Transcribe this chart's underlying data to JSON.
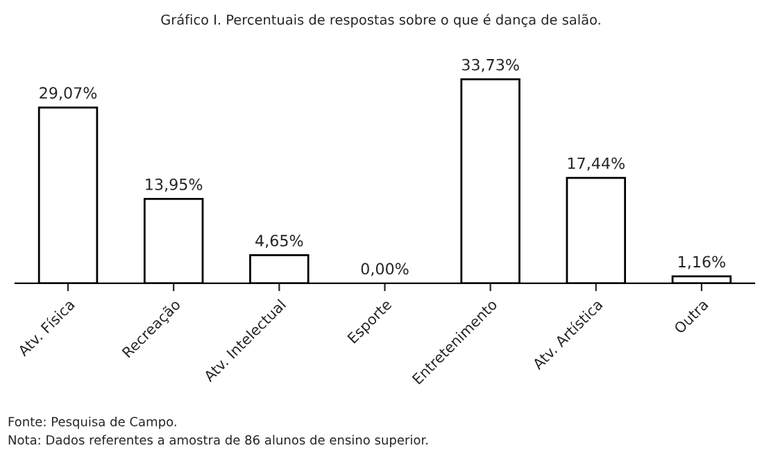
{
  "chart_data": {
    "type": "bar",
    "title": "Gráfico I. Percentuais de respostas sobre o que é dança de salão.",
    "categories": [
      "Atv. Física",
      "Recreação",
      "Atv. Intelectual",
      "Esporte",
      "Entretenimento",
      "Atv. Artística",
      "Outra"
    ],
    "values": [
      29.07,
      13.95,
      4.65,
      0.0,
      33.73,
      17.44,
      1.16
    ],
    "value_labels": [
      "29,07%",
      "13,95%",
      "4,65%",
      "0,00%",
      "33,73%",
      "17,44%",
      "1,16%"
    ],
    "color": "#ffffff",
    "annotations": [
      "Fonte: Pesquisa de Campo.",
      "Nota: Dados referentes a amostra de 86 alunos de ensino superior."
    ],
    "grid": false,
    "legend": false
  }
}
